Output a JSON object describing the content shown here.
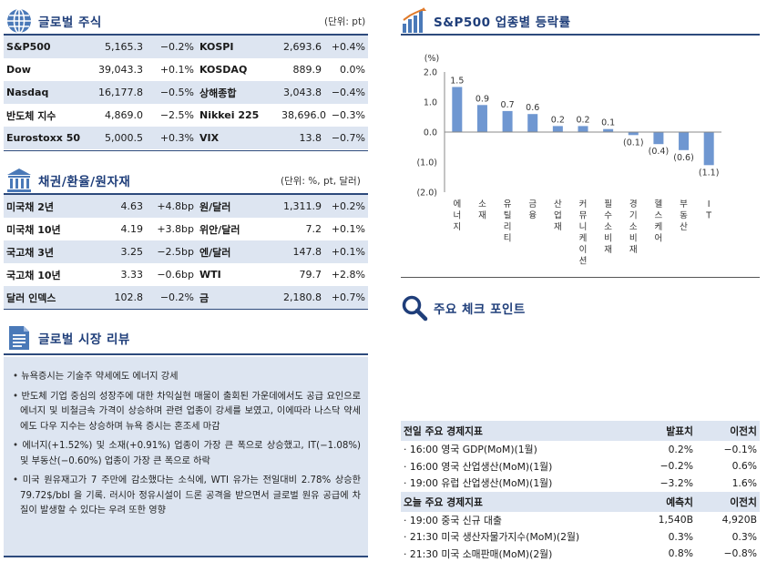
{
  "global_stocks": {
    "title": "글로벌 주식",
    "unit": "(단위: pt)",
    "rows": [
      {
        "n1": "S&P500",
        "v1": "5,165.3",
        "c1": "−0.2%",
        "n2": "KOSPI",
        "v2": "2,693.6",
        "c2": "+0.4%"
      },
      {
        "n1": "Dow",
        "v1": "39,043.3",
        "c1": "+0.1%",
        "n2": "KOSDAQ",
        "v2": "889.9",
        "c2": "0.0%"
      },
      {
        "n1": "Nasdaq",
        "v1": "16,177.8",
        "c1": "−0.5%",
        "n2": "상해종합",
        "v2": "3,043.8",
        "c2": "−0.4%"
      },
      {
        "n1": "반도체 지수",
        "v1": "4,869.0",
        "c1": "−2.5%",
        "n2": "Nikkei 225",
        "v2": "38,696.0",
        "c2": "−0.3%"
      },
      {
        "n1": "Eurostoxx 50",
        "v1": "5,000.5",
        "c1": "+0.3%",
        "n2": "VIX",
        "v2": "13.8",
        "c2": "−0.7%"
      }
    ]
  },
  "bonds_fx": {
    "title": "채권/환율/원자재",
    "unit": "(단위: %, pt, 달러)",
    "rows": [
      {
        "n1": "미국채 2년",
        "v1": "4.63",
        "c1": "+4.8bp",
        "n2": "원/달러",
        "v2": "1,311.9",
        "c2": "+0.2%"
      },
      {
        "n1": "미국채 10년",
        "v1": "4.19",
        "c1": "+3.8bp",
        "n2": "위안/달러",
        "v2": "7.2",
        "c2": "+0.1%"
      },
      {
        "n1": "국고채 3년",
        "v1": "3.25",
        "c1": "−2.5bp",
        "n2": "엔/달러",
        "v2": "147.8",
        "c2": "+0.1%"
      },
      {
        "n1": "국고채 10년",
        "v1": "3.33",
        "c1": "−0.6bp",
        "n2": "WTI",
        "v2": "79.7",
        "c2": "+2.8%"
      },
      {
        "n1": "달러 인덱스",
        "v1": "102.8",
        "c1": "−0.2%",
        "n2": "금",
        "v2": "2,180.8",
        "c2": "+0.7%"
      }
    ]
  },
  "review": {
    "title": "글로벌 시장 리뷰",
    "bullets": [
      "뉴욕증시는 기술주 약세에도 에너지 강세",
      "반도체 기업 중심의 성장주에 대한 차익실현 매물이 출회된 가운데에서도 공급 요인으로 에너지 및 비철금속 가격이 상승하며 관련 업종이 강세를 보였고, 이에따라 나스닥 약세에도 다우 지수는 상승하며 뉴욕 증시는 혼조세 마감",
      "에너지(+1.52%) 및 소재(+0.91%) 업종이 가장 큰 폭으로 상승했고, IT(−1.08%) 및 부동산(−0.60%) 업종이 가장 큰 폭으로 하락",
      "미국 원유재고가 7 주만에 감소했다는 소식에, WTI 유가는 전일대비 2.78% 상승한 79.72$/bbl 을 기록. 러시아 정유시설이 드론 공격을 받으면서 글로벌 원유 공급에 차질이 발생할 수 있다는 우려 또한 영향"
    ]
  },
  "sector_title": "S&P500 업종별 등락률",
  "chart_data": {
    "type": "bar",
    "unit_label": "(%)",
    "categories": [
      "에너지",
      "소재",
      "유틸리티",
      "금융",
      "산업재",
      "커뮤니케이션",
      "필수소비재",
      "경기소비재",
      "헬스케어",
      "부동산",
      "IT"
    ],
    "values": [
      1.5,
      0.9,
      0.7,
      0.6,
      0.2,
      0.2,
      0.1,
      -0.1,
      -0.4,
      -0.6,
      -1.1
    ],
    "value_labels": [
      "1.5",
      "0.9",
      "0.7",
      "0.6",
      "0.2",
      "0.2",
      "0.1",
      "(0.1)",
      "(0.4)",
      "(0.6)",
      "(1.1)"
    ],
    "ylim": [
      -2.0,
      2.0
    ],
    "yticks": [
      2.0,
      1.0,
      0.0,
      -1.0,
      -2.0
    ],
    "ytick_labels": [
      "2.0",
      "1.0",
      "0.0",
      "(1.0)",
      "(2.0)"
    ],
    "bar_color": "#6f97d1"
  },
  "checkpoints_title": "주요 체크 포인트",
  "econ": {
    "yesterday": {
      "header": [
        "전일 주요 경제지표",
        "발표치",
        "이전치"
      ],
      "rows": [
        [
          "· 16:00 영국 GDP(MoM)(1월)",
          "0.2%",
          "−0.1%"
        ],
        [
          "· 16:00 영국 산업생산(MoM)(1월)",
          "−0.2%",
          "0.6%"
        ],
        [
          "· 19:00 유럽 산업생산(MoM)(1월)",
          "−3.2%",
          "1.6%"
        ]
      ]
    },
    "today": {
      "header": [
        "오늘 주요 경제지표",
        "예측치",
        "이전치"
      ],
      "rows": [
        [
          "· 19:00 중국 신규 대출",
          "1,540B",
          "4,920B"
        ],
        [
          "· 21:30 미국 생산자물가지수(MoM)(2월)",
          "0.3%",
          "0.3%"
        ],
        [
          "· 21:30 미국 소매판매(MoM)(2월)",
          "0.8%",
          "−0.8%"
        ]
      ]
    }
  },
  "colors": {
    "navy": "#1f3e7a",
    "band": "#dde5f1",
    "icon_blue": "#4a79b8"
  }
}
